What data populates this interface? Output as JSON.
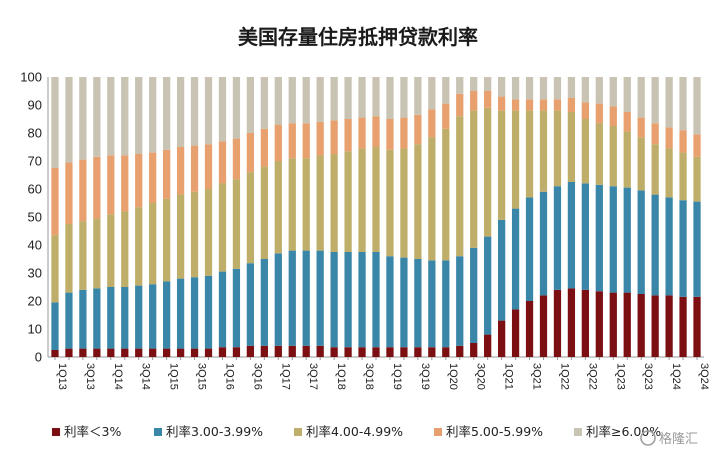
{
  "chart_data": {
    "type": "bar",
    "stacked": true,
    "title": "美国存量住房抵押贷款利率",
    "xlabel": "",
    "ylabel": "",
    "ylim": [
      0,
      100
    ],
    "yticks": [
      "0",
      "10",
      "20",
      "30",
      "40",
      "50",
      "60",
      "70",
      "80",
      "90",
      "100"
    ],
    "categories": [
      "1Q13",
      "2Q13",
      "3Q13",
      "4Q13",
      "1Q14",
      "2Q14",
      "3Q14",
      "4Q14",
      "1Q15",
      "2Q15",
      "3Q15",
      "4Q15",
      "1Q16",
      "2Q16",
      "3Q16",
      "4Q16",
      "1Q17",
      "2Q17",
      "3Q17",
      "4Q17",
      "1Q18",
      "2Q18",
      "3Q18",
      "4Q18",
      "1Q19",
      "2Q19",
      "3Q19",
      "4Q19",
      "1Q20",
      "2Q20",
      "3Q20",
      "4Q20",
      "1Q21",
      "2Q21",
      "3Q21",
      "4Q21",
      "1Q22",
      "2Q22",
      "3Q22",
      "4Q22",
      "1Q23",
      "2Q23",
      "3Q23",
      "4Q23",
      "1Q24",
      "2Q24",
      "3Q24"
    ],
    "x_tick_labels": [
      "1Q13",
      "3Q13",
      "1Q14",
      "3Q14",
      "1Q15",
      "3Q15",
      "1Q16",
      "3Q16",
      "1Q17",
      "3Q17",
      "1Q18",
      "3Q18",
      "1Q19",
      "3Q19",
      "1Q20",
      "3Q20",
      "1Q21",
      "3Q21",
      "1Q22",
      "3Q22",
      "1Q23",
      "3Q23",
      "1Q24",
      "3Q24"
    ],
    "legend_position": "bottom",
    "series": [
      {
        "name": "利率＜3%",
        "color": "#7b0f12",
        "values": [
          2.5,
          3,
          3,
          3,
          3,
          3,
          3,
          3,
          3,
          3,
          3,
          3,
          3.5,
          3.5,
          4,
          4,
          4,
          4,
          4,
          4,
          3.5,
          3.5,
          3.5,
          3.5,
          3.5,
          3.5,
          3.5,
          3.5,
          3.5,
          4,
          5,
          8,
          13,
          17,
          20,
          22,
          24,
          24.5,
          24,
          23.5,
          23,
          23,
          22.5,
          22,
          22,
          21.5,
          21.5
        ]
      },
      {
        "name": "利率3.00-3.99%",
        "color": "#3a86a8",
        "values": [
          17,
          20,
          21,
          21.5,
          22,
          22,
          22.5,
          23,
          24,
          25,
          25.5,
          26,
          27,
          28,
          29.5,
          31,
          33,
          34,
          34,
          34,
          34,
          34,
          34,
          34,
          32.5,
          32,
          31.5,
          31,
          31,
          32,
          34,
          35,
          36,
          36,
          37,
          37,
          37,
          38,
          38,
          38,
          38,
          37.5,
          37,
          36,
          35,
          34.5,
          34
        ]
      },
      {
        "name": "利率4.00-4.99%",
        "color": "#bfae6a",
        "values": [
          24,
          24.5,
          24.5,
          25,
          26,
          27,
          28,
          29,
          29.5,
          30,
          30.5,
          31,
          31.5,
          32,
          32.5,
          33,
          33,
          33,
          33,
          34,
          35,
          36,
          37,
          37.5,
          38,
          39,
          41,
          44,
          47,
          50,
          49,
          46,
          39,
          35,
          31,
          29,
          27,
          25,
          23,
          22,
          21.5,
          20,
          19,
          18,
          17.5,
          17,
          16
        ]
      },
      {
        "name": "利率5.00-5.99%",
        "color": "#e8a06e",
        "values": [
          24,
          22,
          22,
          22,
          21,
          20,
          19,
          18,
          17.5,
          17,
          16.5,
          16,
          15,
          14.5,
          14,
          13.5,
          13,
          12.5,
          12.5,
          12,
          12,
          11.5,
          11,
          11,
          11,
          11,
          10.5,
          10,
          9,
          8,
          7,
          6,
          5,
          4,
          4,
          4,
          4,
          5,
          6,
          7,
          7,
          7,
          7,
          7.5,
          7.5,
          8,
          8
        ]
      },
      {
        "name": "利率≥6.00%",
        "color": "#c8c3b2",
        "values": [
          32.5,
          30.5,
          29.5,
          28.5,
          28,
          28,
          27.5,
          27,
          26,
          25,
          24.5,
          24,
          23,
          22,
          20,
          18.5,
          17,
          16.5,
          16.5,
          16,
          15.5,
          15,
          14.5,
          14,
          15,
          14.5,
          13.5,
          11.5,
          9.5,
          6,
          5,
          5,
          7,
          8,
          8,
          8,
          8,
          7.5,
          9,
          9.5,
          10.5,
          12.5,
          14.5,
          16.5,
          18,
          19,
          20.5
        ]
      }
    ]
  },
  "watermark": "格隆汇"
}
